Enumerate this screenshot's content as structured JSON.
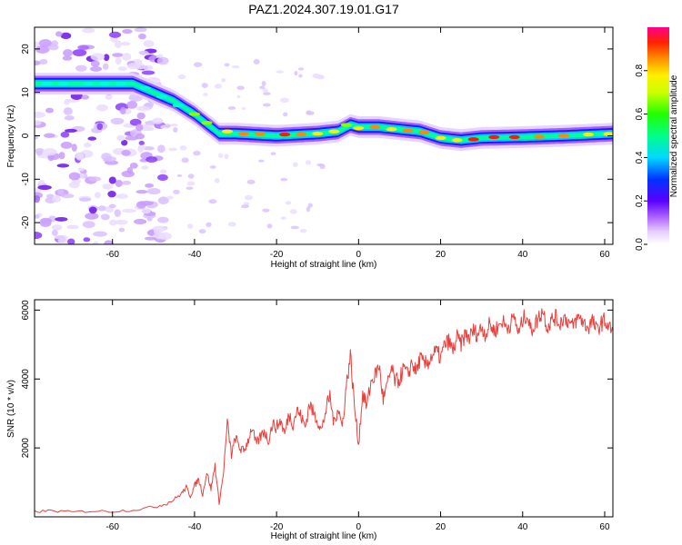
{
  "figure_title": "PAZ1.2024.307.19.01.G17",
  "chart_data": [
    {
      "type": "heatmap",
      "title": "",
      "xlabel": "Height of straight line (km)",
      "ylabel": "Frequency (Hz)",
      "xlim": [
        -79,
        62
      ],
      "ylim": [
        -25,
        25
      ],
      "xticks": [
        -60,
        -40,
        -20,
        0,
        20,
        40,
        60
      ],
      "yticks": [
        -20,
        -10,
        0,
        10,
        20
      ],
      "colorbar": {
        "label": "Normalized spectral amplitude",
        "range": [
          0,
          1
        ],
        "ticks": [
          0.0,
          0.2,
          0.4,
          0.6,
          0.8
        ],
        "tick_labels": [
          "0.0",
          "0.2",
          "0.4",
          "0.6",
          "0.8"
        ]
      },
      "ridge": {
        "x": [
          -79,
          -70,
          -60,
          -55,
          -50,
          -45,
          -40,
          -36,
          -34,
          -30,
          -20,
          -10,
          -5,
          -2,
          0,
          5,
          10,
          15,
          20,
          25,
          30,
          40,
          50,
          62
        ],
        "y": [
          12,
          12,
          12,
          12,
          10,
          8,
          5,
          2,
          0.5,
          0.5,
          0,
          0.5,
          1,
          2.5,
          2,
          2,
          1.5,
          1,
          -0.5,
          -1,
          -0.5,
          -0.3,
          0,
          0.5
        ]
      },
      "series": [
        {
          "x": [
            -76,
            -72,
            -66,
            -62,
            -58,
            -52,
            -48,
            -44,
            -40,
            -37,
            -32,
            -28,
            -24,
            -18,
            -14,
            -10,
            -6,
            -3,
            0,
            4,
            8,
            12,
            16,
            20,
            24,
            28,
            33,
            38,
            44,
            50,
            56,
            61
          ],
          "y": [
            12,
            12,
            12,
            12,
            12,
            11,
            9,
            7,
            5,
            3,
            1,
            0.5,
            0.5,
            0.3,
            0.3,
            0.5,
            1,
            2.5,
            1.8,
            2,
            1.5,
            1.2,
            0.8,
            -0.5,
            -1,
            -0.8,
            -0.3,
            -0.3,
            -0.2,
            0,
            0.3,
            0.4
          ],
          "amp": [
            0.5,
            0.45,
            0.55,
            0.45,
            0.6,
            0.5,
            0.55,
            0.6,
            0.65,
            0.7,
            0.75,
            0.9,
            0.85,
            0.95,
            0.9,
            0.8,
            0.75,
            0.7,
            0.8,
            0.85,
            0.8,
            0.85,
            0.9,
            0.75,
            0.8,
            0.95,
            1.0,
            1.0,
            0.9,
            0.85,
            0.8,
            0.75
          ]
        }
      ]
    },
    {
      "type": "line",
      "title": "",
      "xlabel": "Height of straight line (km)",
      "ylabel": "SNR (10 * v/v)",
      "xlim": [
        -79,
        62
      ],
      "ylim": [
        0,
        6300
      ],
      "xticks": [
        -60,
        -40,
        -20,
        0,
        20,
        40,
        60
      ],
      "yticks": [
        2000,
        4000,
        6000
      ],
      "series": [
        {
          "color": "#e8403c",
          "x": [
            -79,
            -75,
            -70,
            -65,
            -60,
            -55,
            -50,
            -47,
            -45,
            -43,
            -42,
            -41,
            -40,
            -39,
            -38,
            -37,
            -36,
            -35,
            -34,
            -33,
            -32,
            -31,
            -30,
            -29,
            -28,
            -27,
            -26,
            -25,
            -24,
            -23,
            -22,
            -21,
            -20,
            -19,
            -18,
            -17,
            -16,
            -15,
            -14,
            -13,
            -12,
            -11,
            -10,
            -9,
            -8,
            -7,
            -6,
            -5,
            -4,
            -3,
            -2,
            -1,
            0,
            1,
            2,
            3,
            4,
            5,
            6,
            7,
            8,
            9,
            10,
            11,
            12,
            13,
            14,
            15,
            16,
            17,
            18,
            19,
            20,
            21,
            22,
            23,
            24,
            25,
            26,
            27,
            28,
            29,
            30,
            31,
            32,
            33,
            34,
            35,
            36,
            37,
            38,
            39,
            40,
            41,
            42,
            43,
            44,
            45,
            46,
            47,
            48,
            49,
            50,
            51,
            52,
            53,
            54,
            55,
            56,
            57,
            58,
            59,
            60,
            61,
            62
          ],
          "y": [
            150,
            180,
            140,
            170,
            160,
            200,
            280,
            380,
            500,
            700,
            850,
            600,
            900,
            1100,
            650,
            1300,
            800,
            1500,
            400,
            1200,
            2700,
            1800,
            2300,
            2000,
            1900,
            2200,
            2600,
            2100,
            2300,
            2500,
            2200,
            2700,
            2600,
            2800,
            2400,
            3000,
            2700,
            3100,
            2900,
            2600,
            3300,
            3000,
            2800,
            2500,
            3100,
            3500,
            2700,
            3200,
            2600,
            3800,
            4700,
            3200,
            2100,
            3600,
            3200,
            3900,
            4100,
            4400,
            3400,
            3800,
            4300,
            3900,
            4000,
            4300,
            4100,
            4500,
            4200,
            4600,
            4400,
            4500,
            4700,
            4800,
            4600,
            5000,
            5100,
            4800,
            5200,
            5000,
            5300,
            5200,
            5400,
            5300,
            5500,
            5300,
            5600,
            5400,
            5500,
            5700,
            5500,
            5600,
            5800,
            5300,
            5700,
            5900,
            5400,
            5600,
            5800,
            6000,
            5500,
            5700,
            5800,
            5600,
            5800,
            5700,
            5500,
            5700,
            5800,
            5600,
            5500,
            5700,
            5400,
            5600,
            5700,
            5500,
            5400
          ]
        }
      ]
    }
  ]
}
